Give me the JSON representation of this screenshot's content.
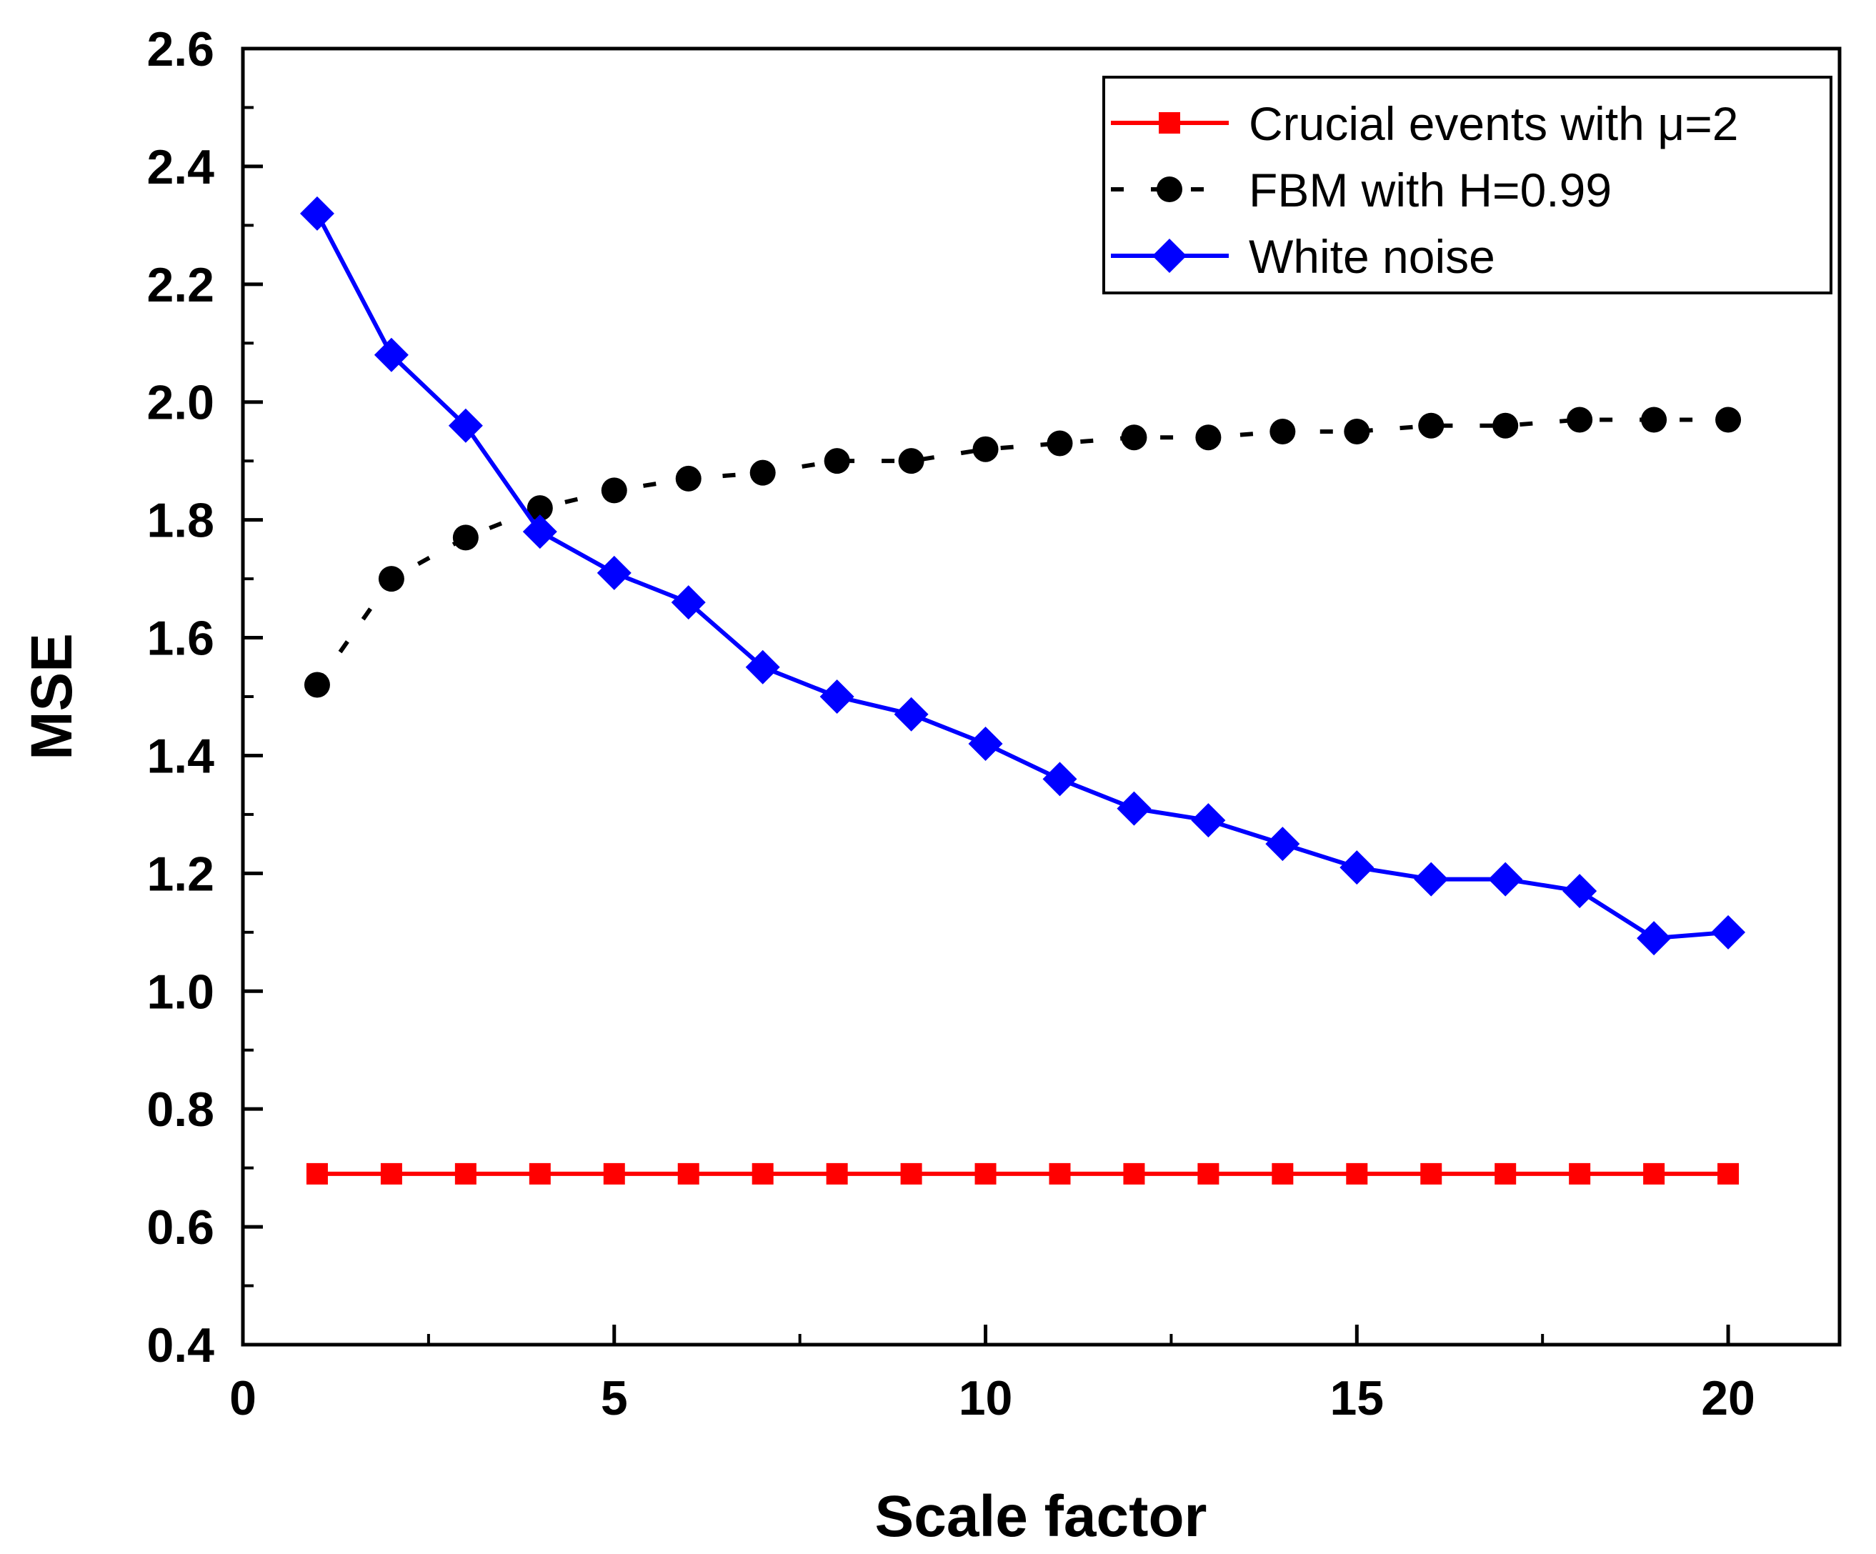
{
  "chart_data": {
    "type": "line",
    "xlabel": "Scale factor",
    "ylabel": "MSE",
    "xlim": [
      0,
      21.5
    ],
    "ylim": [
      0.4,
      2.6
    ],
    "xticks": [
      0,
      5,
      10,
      15,
      20
    ],
    "xtick_labels": [
      "0",
      "5",
      "10",
      "15",
      "20"
    ],
    "yticks": [
      0.4,
      0.6,
      0.8,
      1.0,
      1.2,
      1.4,
      1.6,
      1.8,
      2.0,
      2.2,
      2.4,
      2.6
    ],
    "ytick_labels": [
      "0.4",
      "0.6",
      "0.8",
      "1.0",
      "1.2",
      "1.4",
      "1.6",
      "1.8",
      "2.0",
      "2.2",
      "2.4",
      "2.6"
    ],
    "grid": false,
    "legend_position": "top-right",
    "x": [
      1,
      2,
      3,
      4,
      5,
      6,
      7,
      8,
      9,
      10,
      11,
      12,
      13,
      14,
      15,
      16,
      17,
      18,
      19,
      20
    ],
    "series": [
      {
        "name": "Crucial events with  μ=2",
        "color": "#ff0000",
        "marker": "square",
        "line": "solid",
        "values": [
          0.69,
          0.69,
          0.69,
          0.69,
          0.69,
          0.69,
          0.69,
          0.69,
          0.69,
          0.69,
          0.69,
          0.69,
          0.69,
          0.69,
          0.69,
          0.69,
          0.69,
          0.69,
          0.69,
          0.69
        ]
      },
      {
        "name": "FBM with H=0.99",
        "color": "#000000",
        "marker": "circle",
        "line": "dashed",
        "values": [
          1.52,
          1.7,
          1.77,
          1.82,
          1.85,
          1.87,
          1.88,
          1.9,
          1.9,
          1.92,
          1.93,
          1.94,
          1.94,
          1.95,
          1.95,
          1.96,
          1.96,
          1.97,
          1.97,
          1.97
        ]
      },
      {
        "name": "White noise",
        "color": "#0000ff",
        "marker": "diamond",
        "line": "solid",
        "values": [
          2.32,
          2.08,
          1.96,
          1.78,
          1.71,
          1.66,
          1.55,
          1.5,
          1.47,
          1.42,
          1.36,
          1.31,
          1.29,
          1.25,
          1.21,
          1.19,
          1.19,
          1.17,
          1.09,
          1.1
        ]
      }
    ]
  }
}
